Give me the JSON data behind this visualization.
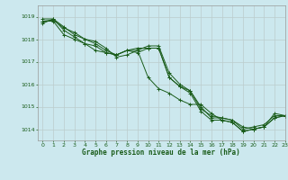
{
  "title": "Graphe pression niveau de la mer (hPa)",
  "background_color": "#cce8ee",
  "grid_color": "#bbcccc",
  "line_color": "#1a5c1a",
  "xlim": [
    -0.5,
    23
  ],
  "ylim": [
    1013.5,
    1019.5
  ],
  "yticks": [
    1014,
    1015,
    1016,
    1017,
    1018,
    1019
  ],
  "xticks": [
    0,
    1,
    2,
    3,
    4,
    5,
    6,
    7,
    8,
    9,
    10,
    11,
    12,
    13,
    14,
    15,
    16,
    17,
    18,
    19,
    20,
    21,
    22,
    23
  ],
  "series": [
    [
      1018.8,
      1018.85,
      1018.5,
      1018.3,
      1018.0,
      1017.8,
      1017.5,
      1017.3,
      1017.5,
      1017.4,
      1017.6,
      1017.6,
      1016.3,
      1015.9,
      1015.6,
      1014.8,
      1014.4,
      1014.4,
      1014.3,
      1013.9,
      1014.0,
      1014.1,
      1014.7,
      1014.6
    ],
    [
      1018.9,
      1018.9,
      1018.55,
      1018.2,
      1018.0,
      1017.9,
      1017.6,
      1017.2,
      1017.3,
      1017.5,
      1017.7,
      1017.7,
      1016.5,
      1016.0,
      1015.7,
      1015.0,
      1014.5,
      1014.5,
      1014.4,
      1014.1,
      1014.0,
      1014.1,
      1014.5,
      1014.6
    ],
    [
      1018.7,
      1018.9,
      1018.4,
      1018.1,
      1017.8,
      1017.7,
      1017.4,
      1017.3,
      1017.5,
      1017.5,
      1016.3,
      1015.8,
      1015.6,
      1015.3,
      1015.1,
      1015.1,
      1014.7,
      1014.4,
      1014.3,
      1013.9,
      1014.0,
      1014.1,
      1014.5,
      1014.6
    ],
    [
      1018.8,
      1018.8,
      1018.2,
      1018.0,
      1017.8,
      1017.5,
      1017.4,
      1017.3,
      1017.5,
      1017.6,
      1017.6,
      1017.6,
      1016.3,
      1015.9,
      1015.7,
      1014.9,
      1014.6,
      1014.5,
      1014.4,
      1014.0,
      1014.1,
      1014.2,
      1014.6,
      1014.6
    ]
  ]
}
